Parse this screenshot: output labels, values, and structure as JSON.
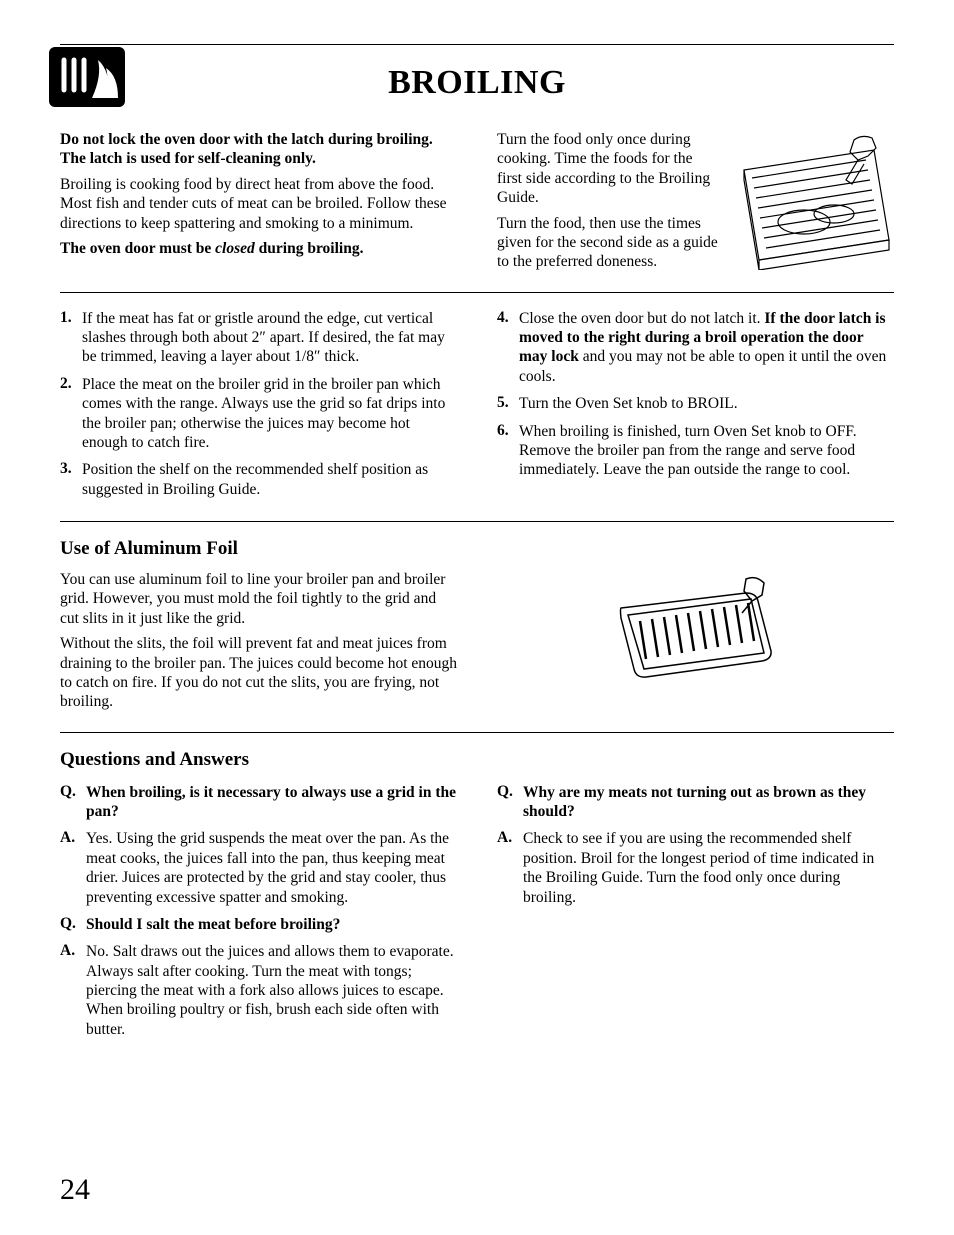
{
  "page": {
    "title": "BROILING",
    "number": "24"
  },
  "intro": {
    "warning": "Do not lock the oven door with the latch during broiling. The latch is used for self-cleaning only.",
    "desc": "Broiling is cooking food by direct heat from above the food. Most fish and tender cuts of meat can be broiled. Follow these directions to keep spattering and smoking to a minimum.",
    "door_pre": "The oven door must be ",
    "door_em": "closed",
    "door_post": " during broiling.",
    "right1": "Turn the food only once during cooking. Time the foods for the first side according to the Broiling Guide.",
    "right2": "Turn the food, then use the times given for the second side as a guide to the preferred doneness."
  },
  "steps": [
    {
      "n": "1.",
      "t": "If the meat has fat or gristle around the edge, cut vertical slashes through both about 2″ apart. If desired, the fat may be trimmed, leaving a layer about 1/8″ thick."
    },
    {
      "n": "2.",
      "t": "Place the meat on the broiler grid in the broiler pan which comes with the range. Always use the grid so fat drips into the broiler pan; otherwise the juices may become hot enough to catch fire."
    },
    {
      "n": "3.",
      "t": "Position the shelf on the recommended shelf position as suggested in Broiling Guide."
    },
    {
      "n": "4.",
      "pre": "Close the oven door but do not latch it. ",
      "bold": "If the door latch is moved to the right during a broil operation the door may lock",
      "post": " and you may not be able to open it until the oven cools."
    },
    {
      "n": "5.",
      "t": "Turn the Oven Set knob to BROIL."
    },
    {
      "n": "6.",
      "t": "When broiling is finished, turn Oven Set knob to OFF. Remove the broiler pan from the range and serve food immediately. Leave the pan outside the range to cool."
    }
  ],
  "foil": {
    "heading": "Use of Aluminum Foil",
    "p1": "You can use aluminum foil to line your broiler pan and broiler grid. However, you must mold the foil tightly to the grid and cut slits in it just like the grid.",
    "p2": "Without the slits, the foil will prevent fat and meat juices from draining to the broiler pan. The juices could become hot enough to catch on fire. If you do not cut the slits, you are frying, not broiling."
  },
  "qa": {
    "heading": "Questions and Answers",
    "left": [
      {
        "p": "Q.",
        "b": "When broiling, is it necessary to always use a grid in the pan?",
        "bold": true
      },
      {
        "p": "A.",
        "b": "Yes. Using the grid suspends the meat over the pan. As the meat cooks, the juices fall into the pan, thus keeping meat drier. Juices are protected by the grid and stay cooler, thus preventing excessive spatter and smoking.",
        "bold": false
      },
      {
        "p": "Q.",
        "b": "Should I salt the meat before broiling?",
        "bold": true
      },
      {
        "p": "A.",
        "b": "No. Salt draws out the juices and allows them to evaporate. Always salt after cooking. Turn the meat with tongs; piercing the meat with a fork also allows juices to escape. When broiling poultry or fish, brush each side often with butter.",
        "bold": false
      }
    ],
    "right": [
      {
        "p": "Q.",
        "b": "Why are my meats not turning out as brown as they should?",
        "bold": true
      },
      {
        "p": "A.",
        "b": "Check to see if you are using the recommended shelf position. Broil for the longest period of time indicated in the Broiling Guide. Turn the food only once during broiling.",
        "bold": false
      }
    ]
  }
}
